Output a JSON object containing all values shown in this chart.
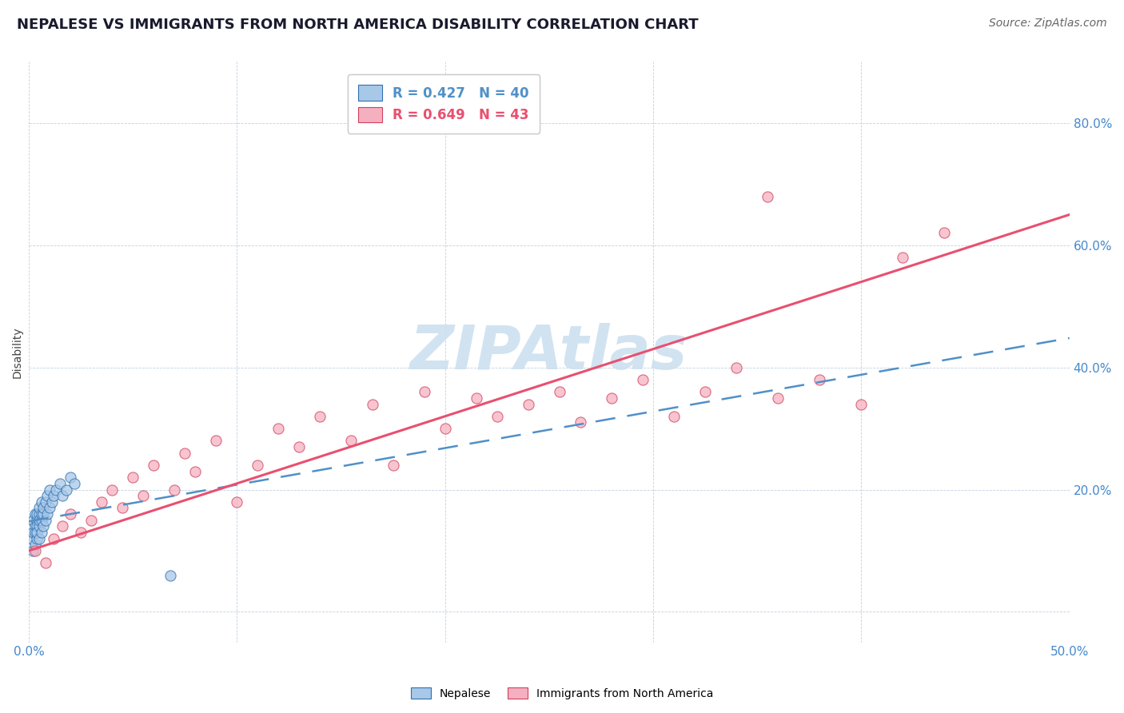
{
  "title": "NEPALESE VS IMMIGRANTS FROM NORTH AMERICA DISABILITY CORRELATION CHART",
  "source": "Source: ZipAtlas.com",
  "ylabel": "Disability",
  "xlim": [
    0.0,
    0.5
  ],
  "ylim": [
    -0.05,
    0.9
  ],
  "xticks": [
    0.0,
    0.1,
    0.2,
    0.3,
    0.4,
    0.5
  ],
  "yticks": [
    0.0,
    0.2,
    0.4,
    0.6,
    0.8
  ],
  "ytick_labels": [
    "",
    "20.0%",
    "40.0%",
    "60.0%",
    "80.0%"
  ],
  "xtick_labels": [
    "0.0%",
    "",
    "",
    "",
    "",
    "50.0%"
  ],
  "legend_r1": "R = 0.427   N = 40",
  "legend_r2": "R = 0.649   N = 43",
  "legend_label1": "Nepalese",
  "legend_label2": "Immigrants from North America",
  "blue_scatter_color": "#a8c8e8",
  "pink_scatter_color": "#f5b0c0",
  "blue_line_color": "#5090c8",
  "pink_line_color": "#e85070",
  "blue_edge_color": "#3070b0",
  "pink_edge_color": "#d04060",
  "watermark": "ZIPAtlas",
  "watermark_color": "#cce0f0",
  "title_fontsize": 13,
  "axis_label_fontsize": 10,
  "tick_fontsize": 11,
  "source_fontsize": 10,
  "nepalese_x": [
    0.001,
    0.002,
    0.002,
    0.002,
    0.003,
    0.003,
    0.003,
    0.003,
    0.004,
    0.004,
    0.004,
    0.004,
    0.004,
    0.005,
    0.005,
    0.005,
    0.005,
    0.005,
    0.006,
    0.006,
    0.006,
    0.006,
    0.007,
    0.007,
    0.007,
    0.008,
    0.008,
    0.009,
    0.009,
    0.01,
    0.01,
    0.011,
    0.012,
    0.013,
    0.015,
    0.016,
    0.018,
    0.02,
    0.022,
    0.068
  ],
  "nepalese_y": [
    0.12,
    0.1,
    0.13,
    0.15,
    0.11,
    0.14,
    0.16,
    0.13,
    0.12,
    0.15,
    0.14,
    0.16,
    0.13,
    0.12,
    0.14,
    0.16,
    0.15,
    0.17,
    0.13,
    0.15,
    0.16,
    0.18,
    0.14,
    0.16,
    0.17,
    0.15,
    0.18,
    0.16,
    0.19,
    0.17,
    0.2,
    0.18,
    0.19,
    0.2,
    0.21,
    0.19,
    0.2,
    0.22,
    0.21,
    0.06
  ],
  "northamerica_x": [
    0.003,
    0.008,
    0.012,
    0.016,
    0.02,
    0.025,
    0.03,
    0.035,
    0.04,
    0.045,
    0.05,
    0.055,
    0.06,
    0.07,
    0.075,
    0.08,
    0.09,
    0.1,
    0.11,
    0.12,
    0.13,
    0.14,
    0.155,
    0.165,
    0.175,
    0.19,
    0.2,
    0.215,
    0.225,
    0.24,
    0.255,
    0.265,
    0.28,
    0.295,
    0.31,
    0.325,
    0.34,
    0.36,
    0.38,
    0.4,
    0.355,
    0.42,
    0.44
  ],
  "northamerica_y": [
    0.1,
    0.08,
    0.12,
    0.14,
    0.16,
    0.13,
    0.15,
    0.18,
    0.2,
    0.17,
    0.22,
    0.19,
    0.24,
    0.2,
    0.26,
    0.23,
    0.28,
    0.18,
    0.24,
    0.3,
    0.27,
    0.32,
    0.28,
    0.34,
    0.24,
    0.36,
    0.3,
    0.35,
    0.32,
    0.34,
    0.36,
    0.31,
    0.35,
    0.38,
    0.32,
    0.36,
    0.4,
    0.35,
    0.38,
    0.34,
    0.68,
    0.58,
    0.62
  ]
}
